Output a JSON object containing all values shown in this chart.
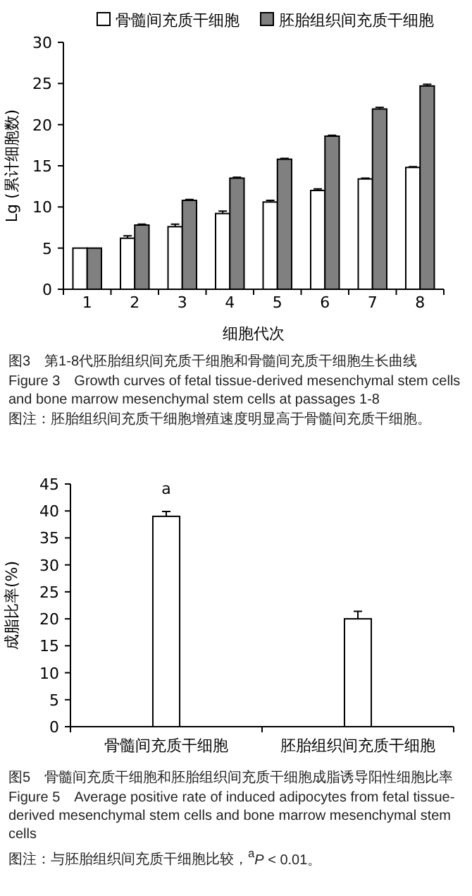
{
  "chart_data": [
    {
      "type": "bar",
      "title": "图3　第1-8代胚胎组织间充质干细胞和骨髓间充质干细胞生长曲线",
      "subtitle": "Figure 3　Growth curves of fetal tissue-derived mesenchymal stem cells and bone marrow mesenchymal stem cells at passages 1-8",
      "annotations": [
        "图注：胚胎组织间充质干细胞增殖速度明显高于骨髓间充质干细胞。"
      ],
      "xlabel": "细胞代次",
      "ylabel": "Lg (累计细胞数)",
      "categories": [
        "1",
        "2",
        "3",
        "4",
        "5",
        "6",
        "7",
        "8"
      ],
      "series": [
        {
          "name": "骨髓间充质干细胞",
          "color": "#ffffff",
          "values": [
            5.0,
            6.2,
            7.6,
            9.2,
            10.6,
            12.0,
            13.4,
            14.8
          ],
          "errors": [
            null,
            [
              6.2,
              6.5
            ],
            [
              7.6,
              7.9
            ],
            [
              9.2,
              9.5
            ],
            [
              10.6,
              10.8
            ],
            [
              12.0,
              12.2
            ],
            [
              13.4,
              13.5
            ],
            [
              14.8,
              14.9
            ]
          ]
        },
        {
          "name": "胚胎组织间充质干细胞",
          "color": "#808080",
          "values": [
            5.0,
            7.8,
            10.8,
            13.5,
            15.8,
            18.6,
            21.9,
            24.7
          ],
          "errors": [
            null,
            [
              7.8,
              7.9
            ],
            [
              10.8,
              10.9
            ],
            [
              13.5,
              13.6
            ],
            [
              15.8,
              15.9
            ],
            [
              18.6,
              18.7
            ],
            [
              21.9,
              22.1
            ],
            [
              24.7,
              24.9
            ]
          ]
        }
      ],
      "ylim": [
        0,
        30
      ],
      "yticks": [
        0,
        5,
        10,
        15,
        20,
        25,
        30
      ],
      "legend": "top",
      "grid": false
    },
    {
      "type": "bar",
      "title": "图5　骨髓间充质干细胞和胚胎组织间充质干细胞成脂诱导阳性细胞比率",
      "subtitle": "Figure 5　Average positive rate of induced adipocytes from fetal tissue-derived mesenchymal stem cells and bone marrow mesenchymal stem cells",
      "annotations": [
        "图注：与胚胎组织间充质干细胞比较，$^{a}$*P* < 0.01。",
        {
          "text": "a",
          "x": "骨髓间充质干细胞",
          "y": 39
        }
      ],
      "ylabel": "成脂比率(%)",
      "categories": [
        "骨髓间充质干细胞",
        "胚胎组织间充质干细胞"
      ],
      "series": [
        {
          "color": "#ffffff",
          "values": [
            39,
            20
          ],
          "errors": [
            [
              39,
              39.9
            ],
            [
              20,
              21.4
            ]
          ]
        }
      ],
      "ylim": [
        0,
        45
      ],
      "yticks": [
        0,
        5,
        10,
        15,
        20,
        25,
        30,
        35,
        40,
        45
      ],
      "legend": false,
      "grid": false
    }
  ]
}
